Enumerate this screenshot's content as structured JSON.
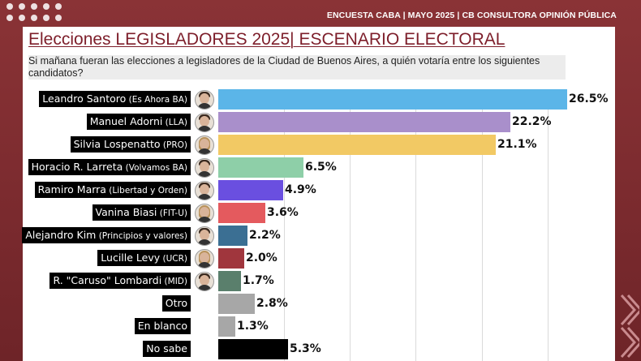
{
  "header": {
    "text": "ENCUESTA CABA | MAYO 2025 | CB CONSULTORA OPINIÓN PÚBLICA"
  },
  "title": {
    "main": "Elecciones LEGISLADORES 2025| ESCENARIO ELECTORAL"
  },
  "question": "Si mañana fueran las elecciones a legisladores de la Ciudad de Buenos Aires, a quién votaría entre los siguientes candidatos?",
  "colors": {
    "background": "#7b2a2f",
    "title": "#7d1e2a",
    "label_bg": "#000000"
  },
  "chart_data": {
    "type": "bar",
    "orientation": "horizontal",
    "xlim": [
      0,
      26.5
    ],
    "grid": true,
    "categories": [
      {
        "name": "Leandro Santoro",
        "party": "(Es Ahora BA)"
      },
      {
        "name": "Manuel Adorni",
        "party": "(LLA)"
      },
      {
        "name": "Silvia Lospenatto",
        "party": "(PRO)"
      },
      {
        "name": "Horacio R. Larreta",
        "party": "(Volvamos BA)"
      },
      {
        "name": "Ramiro Marra",
        "party": "(Libertad y Orden)"
      },
      {
        "name": "Vanina Biasi",
        "party": "(FIT-U)"
      },
      {
        "name": "Alejandro Kim",
        "party": "(Principios y valores)"
      },
      {
        "name": "Lucille Levy",
        "party": "(UCR)"
      },
      {
        "name": "R. \"Caruso\" Lombardi",
        "party": "(MID)"
      },
      {
        "name": "Otro",
        "party": ""
      },
      {
        "name": "En blanco",
        "party": ""
      },
      {
        "name": "No sabe",
        "party": ""
      }
    ],
    "values": [
      26.5,
      22.2,
      21.1,
      6.5,
      4.9,
      3.6,
      2.2,
      2.0,
      1.7,
      2.8,
      1.3,
      5.3
    ],
    "value_labels": [
      "26.5%",
      "22.2%",
      "21.1%",
      "6.5%",
      "4.9%",
      "3.6%",
      "2.2%",
      "2.0%",
      "1.7%",
      "2.8%",
      "1.3%",
      "5.3%"
    ],
    "bar_colors": [
      "#5bb5e8",
      "#a98fcb",
      "#f2c964",
      "#8ecfa8",
      "#6a4fe0",
      "#e45a5e",
      "#3b6f93",
      "#a0363d",
      "#5a7f6c",
      "#a7a7a7",
      "#a7a7a7",
      "#000000"
    ],
    "has_avatar": [
      true,
      true,
      true,
      true,
      true,
      true,
      true,
      true,
      true,
      false,
      false,
      false
    ],
    "avatar_female": [
      false,
      false,
      true,
      false,
      false,
      true,
      false,
      true,
      false,
      false,
      false,
      false
    ]
  }
}
